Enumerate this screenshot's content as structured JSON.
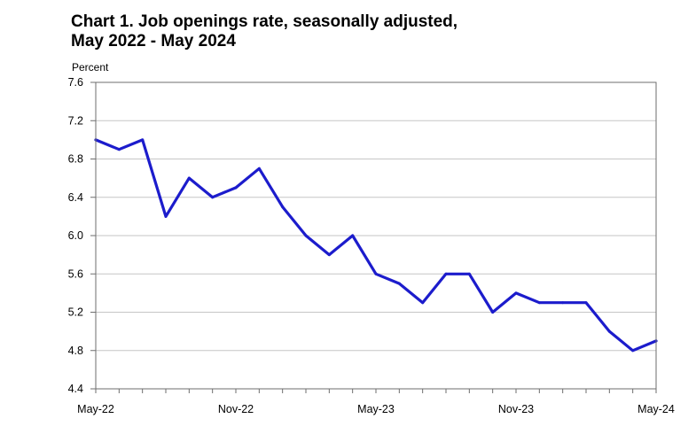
{
  "chart_data": {
    "type": "line",
    "title": "Chart 1. Job openings rate, seasonally adjusted,",
    "subtitle": "May 2022 - May 2024",
    "ylabel": "Percent",
    "xlabel": "",
    "ylim": [
      4.4,
      7.6
    ],
    "yticks": [
      "7.6",
      "7.2",
      "6.8",
      "6.4",
      "6.0",
      "5.6",
      "5.2",
      "4.8",
      "4.4"
    ],
    "xtick_labels": [
      {
        "index": 0,
        "label": "May-22"
      },
      {
        "index": 6,
        "label": "Nov-22"
      },
      {
        "index": 12,
        "label": "May-23"
      },
      {
        "index": 18,
        "label": "Nov-23"
      },
      {
        "index": 24,
        "label": "May-24"
      }
    ],
    "grid": true,
    "series": [
      {
        "name": "Job openings rate",
        "color": "#1c1ccc",
        "values": [
          7.0,
          6.9,
          7.0,
          6.2,
          6.6,
          6.4,
          6.5,
          6.7,
          6.3,
          6.0,
          5.8,
          6.0,
          5.6,
          5.5,
          5.3,
          5.6,
          5.6,
          5.2,
          5.4,
          5.3,
          5.3,
          5.3,
          5.0,
          4.8,
          4.9
        ]
      }
    ]
  }
}
